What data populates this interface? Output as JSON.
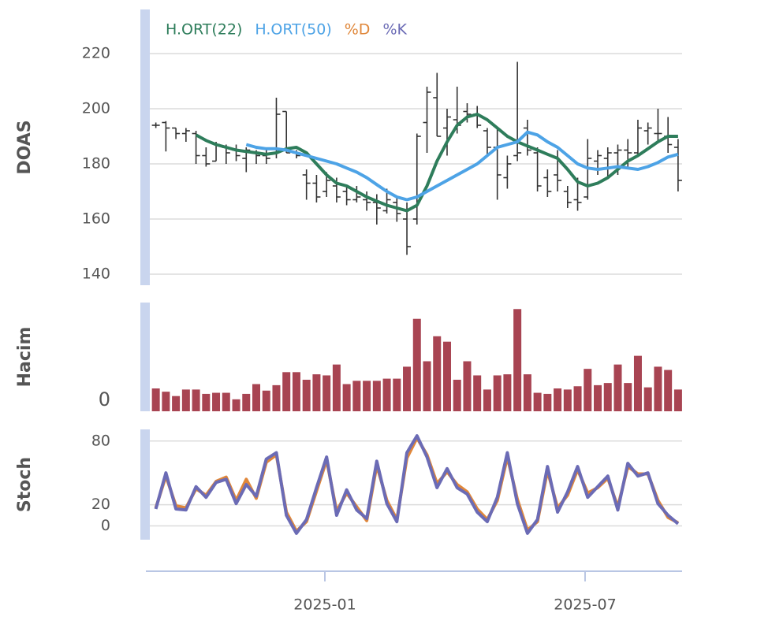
{
  "chart_data": [
    {
      "type": "ohlc",
      "ylabel": "DOAS",
      "xlim": [
        -0.6,
        52.4
      ],
      "ylim": [
        136,
        236
      ],
      "yticks": [
        140,
        160,
        180,
        200,
        220
      ],
      "grid": true,
      "bar_color": "#333333",
      "open": [
        194,
        195,
        193,
        191,
        191,
        183,
        181,
        186,
        185,
        182,
        184,
        183,
        184,
        199,
        184,
        176,
        173,
        170,
        172,
        170,
        167,
        167,
        166,
        163,
        166,
        160,
        160,
        195,
        204,
        193,
        196,
        199,
        198,
        192,
        186,
        175,
        183,
        193,
        184,
        175,
        176,
        170,
        167,
        168,
        181,
        182,
        184,
        185,
        184,
        192,
        191,
        190,
        186
      ],
      "high": [
        195,
        195.5,
        193,
        193,
        192,
        186,
        188,
        187,
        187,
        186,
        185,
        185,
        204,
        199,
        185,
        178,
        176,
        177,
        175,
        172,
        172,
        170,
        169,
        171,
        168,
        166,
        191,
        208,
        213,
        200,
        208,
        202,
        201,
        193,
        193,
        183,
        217,
        196,
        186,
        178,
        185,
        172,
        175,
        189,
        185,
        186,
        187,
        189,
        196,
        195,
        200,
        197,
        189
      ],
      "low": [
        193,
        184.5,
        189,
        188,
        180,
        179,
        181,
        180,
        181,
        177,
        180,
        180,
        182,
        184,
        182,
        167,
        166,
        168,
        166,
        165,
        166,
        163,
        158,
        162,
        159,
        147,
        158,
        184,
        190,
        183,
        191,
        195,
        193,
        183,
        167,
        171,
        181,
        183,
        170,
        168,
        170,
        164,
        163,
        167,
        176,
        175,
        176,
        178,
        183,
        187,
        188,
        184,
        170
      ],
      "close": [
        194,
        193,
        191,
        192,
        183,
        180,
        187,
        184,
        183,
        185,
        183,
        182,
        198,
        184,
        183,
        173,
        168,
        174,
        168,
        167,
        168,
        166,
        164,
        167,
        162,
        150,
        190,
        206,
        190,
        197,
        194,
        198,
        194,
        186,
        176,
        180,
        184,
        185,
        172,
        170,
        174,
        166,
        166,
        182,
        183,
        184,
        185,
        184,
        193,
        193,
        191,
        187,
        174
      ],
      "series": [
        {
          "name": "H.ORT(22)",
          "color": "#2e7d5b",
          "values": [
            null,
            null,
            null,
            null,
            190.5,
            188.5,
            187,
            186,
            185,
            184.5,
            184,
            183.5,
            184,
            185.5,
            186,
            184,
            180,
            176,
            173,
            172,
            170,
            168,
            166.5,
            165,
            164,
            163,
            165,
            172,
            181,
            188,
            194,
            197,
            198,
            196,
            193,
            190,
            188,
            186.5,
            185,
            183.5,
            182,
            178,
            173.5,
            172,
            173,
            175,
            178,
            181,
            183,
            185.5,
            188,
            190,
            190
          ]
        },
        {
          "name": "H.ORT(50)",
          "color": "#4da3e6",
          "values": [
            null,
            null,
            null,
            null,
            null,
            null,
            null,
            null,
            null,
            187,
            186,
            185.5,
            185.5,
            185,
            184,
            183,
            182,
            181,
            180,
            178.5,
            177,
            175,
            172.5,
            170,
            168,
            167,
            168,
            170,
            172,
            174,
            176,
            178,
            180,
            183,
            186,
            187,
            188,
            191.5,
            190.5,
            188,
            186,
            183,
            180,
            178.5,
            178,
            178.5,
            179,
            178.5,
            178,
            179,
            180.5,
            182.5,
            183.5
          ]
        }
      ]
    },
    {
      "type": "bar",
      "ylabel": "Hacim",
      "xlim": [
        -0.6,
        52.4
      ],
      "ylim": [
        0,
        100
      ],
      "yticks": [
        0
      ],
      "color": "#a84452",
      "values": [
        21,
        18,
        14,
        20,
        20,
        16,
        17,
        17,
        11,
        16,
        25,
        19,
        24,
        36,
        36,
        29,
        34,
        33,
        43,
        25,
        28,
        28,
        28,
        30,
        30,
        41,
        85,
        46,
        69,
        64,
        29,
        46,
        33,
        20,
        33,
        34,
        94,
        34,
        17,
        16,
        21,
        20,
        23,
        39,
        24,
        26,
        43,
        26,
        51,
        22,
        41,
        38,
        20
      ]
    },
    {
      "type": "line",
      "ylabel": "Stoch",
      "xlim": [
        -0.6,
        52.4
      ],
      "ylim": [
        -13,
        91
      ],
      "yticks": [
        0,
        20,
        80
      ],
      "grid": true,
      "xticks": [
        {
          "value": 16.83,
          "label": "2025-01"
        },
        {
          "value": 42.74,
          "label": "2025-07"
        }
      ],
      "series": [
        {
          "name": "%D",
          "color": "#e0873a",
          "values": [
            17,
            47,
            19,
            17,
            35,
            29,
            42,
            46,
            24,
            44,
            26,
            60,
            67,
            13,
            -5,
            4,
            33,
            62,
            14,
            31,
            18,
            5,
            57,
            24,
            6,
            64,
            83,
            67,
            40,
            51,
            39,
            32,
            16,
            6,
            24,
            65,
            25,
            -4,
            4,
            52,
            17,
            29,
            53,
            31,
            36,
            45,
            18,
            56,
            49,
            49,
            24,
            8,
            3
          ]
        },
        {
          "name": "%K",
          "color": "#6b6bb5",
          "values": [
            16,
            50,
            16,
            15,
            37,
            27,
            41,
            44,
            21,
            39,
            28,
            63,
            69,
            10,
            -7,
            6,
            36,
            65,
            10,
            34,
            15,
            7,
            61,
            21,
            4,
            69,
            85,
            65,
            36,
            54,
            36,
            30,
            13,
            4,
            27,
            69,
            21,
            -7,
            6,
            56,
            13,
            32,
            56,
            27,
            37,
            47,
            15,
            59,
            47,
            50,
            21,
            10,
            2
          ]
        }
      ]
    }
  ]
}
